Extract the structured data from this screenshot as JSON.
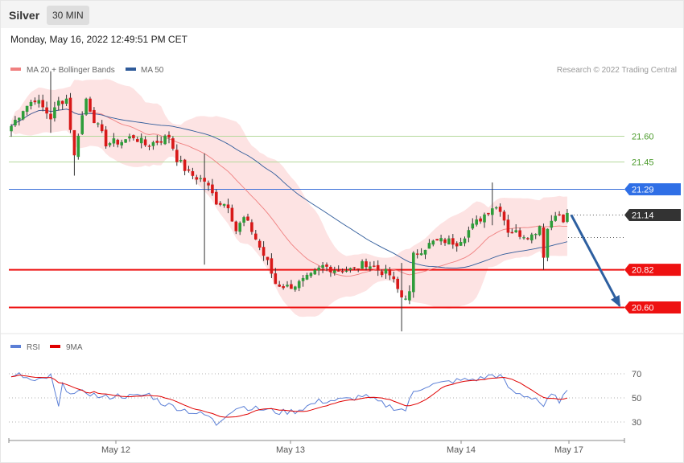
{
  "header": {
    "title": "Silver",
    "timeframe": "30 MIN"
  },
  "date_label": "Monday, May 16, 2022 12:49:51 PM CET",
  "legend": {
    "main": [
      {
        "label": "MA 20 + Bollinger Bands",
        "color": "#f08080"
      },
      {
        "label": "MA 50",
        "color": "#2f5b9a"
      }
    ],
    "rsi": [
      {
        "label": "RSI",
        "color": "#5b7fd6"
      },
      {
        "label": "9MA",
        "color": "#e00000"
      }
    ]
  },
  "credit": "Research © 2022 Trading Central",
  "colors": {
    "up": "#2e9d3a",
    "down": "#d81818",
    "band": "#fde3e3",
    "support": "#ee1111",
    "resistance_minor": "#b5d99c",
    "pivot": "#3a6fd8",
    "arrow": "#2d5fa0",
    "current": "#333333"
  },
  "chart_data": [
    {
      "type": "candlestick",
      "title": "",
      "ylim": [
        20.48,
        21.95
      ],
      "x_tick_labels": [
        "May 12",
        "May 13",
        "May 14",
        "May 17"
      ],
      "levels": [
        {
          "value": 21.6,
          "label": "21.60",
          "kind": "resistance_minor"
        },
        {
          "value": 21.45,
          "label": "21.45",
          "kind": "resistance_minor"
        },
        {
          "value": 21.29,
          "label": "21.29",
          "kind": "pivot"
        },
        {
          "value": 21.14,
          "label": "21.14",
          "kind": "current"
        },
        {
          "value": 20.82,
          "label": "20.82",
          "kind": "support"
        },
        {
          "value": 20.6,
          "label": "20.60",
          "kind": "support"
        }
      ],
      "forecast_arrow": {
        "from": 21.14,
        "to": 20.6
      },
      "anchors": [
        {
          "i": 0,
          "c": 21.66
        },
        {
          "i": 3,
          "c": 21.76
        },
        {
          "i": 6,
          "c": 21.82
        },
        {
          "i": 10,
          "c": 21.71
        },
        {
          "i": 12,
          "c": 21.8
        },
        {
          "i": 14,
          "c": 21.82
        },
        {
          "i": 16,
          "c": 21.48
        },
        {
          "i": 17,
          "c": 21.62
        },
        {
          "i": 19,
          "c": 21.82
        },
        {
          "i": 21,
          "c": 21.7
        },
        {
          "i": 24,
          "c": 21.56
        },
        {
          "i": 28,
          "c": 21.57
        },
        {
          "i": 31,
          "c": 21.6
        },
        {
          "i": 34,
          "c": 21.55
        },
        {
          "i": 37,
          "c": 21.57
        },
        {
          "i": 40,
          "c": 21.6
        },
        {
          "i": 42,
          "c": 21.47
        },
        {
          "i": 45,
          "c": 21.38
        },
        {
          "i": 49,
          "c": 21.34
        },
        {
          "i": 52,
          "c": 21.22
        },
        {
          "i": 55,
          "c": 21.2
        },
        {
          "i": 57,
          "c": 21.05
        },
        {
          "i": 59,
          "c": 21.12
        },
        {
          "i": 61,
          "c": 21.05
        },
        {
          "i": 63,
          "c": 20.95
        },
        {
          "i": 65,
          "c": 20.86
        },
        {
          "i": 67,
          "c": 20.74
        },
        {
          "i": 70,
          "c": 20.72
        },
        {
          "i": 73,
          "c": 20.74
        },
        {
          "i": 76,
          "c": 20.78
        },
        {
          "i": 79,
          "c": 20.84
        },
        {
          "i": 83,
          "c": 20.82
        },
        {
          "i": 87,
          "c": 20.82
        },
        {
          "i": 90,
          "c": 20.86
        },
        {
          "i": 93,
          "c": 20.82
        },
        {
          "i": 96,
          "c": 20.79
        },
        {
          "i": 99,
          "c": 20.66
        },
        {
          "i": 101,
          "c": 20.68
        },
        {
          "i": 102,
          "c": 20.9
        },
        {
          "i": 104,
          "c": 20.94
        },
        {
          "i": 107,
          "c": 20.98
        },
        {
          "i": 110,
          "c": 20.99
        },
        {
          "i": 113,
          "c": 20.98
        },
        {
          "i": 116,
          "c": 21.05
        },
        {
          "i": 119,
          "c": 21.12
        },
        {
          "i": 122,
          "c": 21.19
        },
        {
          "i": 124,
          "c": 21.18
        },
        {
          "i": 126,
          "c": 21.05
        },
        {
          "i": 129,
          "c": 21.03
        },
        {
          "i": 132,
          "c": 21.02
        },
        {
          "i": 134,
          "c": 21.08
        },
        {
          "i": 135,
          "c": 20.91
        },
        {
          "i": 136,
          "c": 21.06
        },
        {
          "i": 138,
          "c": 21.16
        },
        {
          "i": 140,
          "c": 21.1
        },
        {
          "i": 141,
          "c": 21.14
        }
      ],
      "highlights": [
        {
          "i": 10,
          "h": 21.98,
          "l": 21.62
        },
        {
          "i": 16,
          "h": 21.55,
          "l": 21.37
        },
        {
          "i": 49,
          "h": 21.5,
          "l": 20.85
        },
        {
          "i": 99,
          "h": 20.86,
          "l": 20.46
        },
        {
          "i": 122,
          "h": 21.33,
          "l": 21.08
        },
        {
          "i": 135,
          "h": 21.09,
          "l": 20.82
        }
      ],
      "rsi": {
        "ylim": [
          20,
          80
        ],
        "levels": [
          70,
          50,
          30
        ],
        "anchors": [
          {
            "i": 0,
            "v": 66
          },
          {
            "i": 2,
            "v": 69
          },
          {
            "i": 6,
            "v": 63
          },
          {
            "i": 10,
            "v": 68
          },
          {
            "i": 12,
            "v": 42
          },
          {
            "i": 13,
            "v": 60
          },
          {
            "i": 16,
            "v": 53
          },
          {
            "i": 19,
            "v": 55
          },
          {
            "i": 23,
            "v": 50
          },
          {
            "i": 27,
            "v": 52
          },
          {
            "i": 31,
            "v": 51
          },
          {
            "i": 35,
            "v": 53
          },
          {
            "i": 38,
            "v": 46
          },
          {
            "i": 42,
            "v": 42
          },
          {
            "i": 46,
            "v": 38
          },
          {
            "i": 50,
            "v": 35
          },
          {
            "i": 52,
            "v": 28
          },
          {
            "i": 55,
            "v": 38
          },
          {
            "i": 58,
            "v": 43
          },
          {
            "i": 62,
            "v": 41
          },
          {
            "i": 65,
            "v": 40
          },
          {
            "i": 68,
            "v": 38
          },
          {
            "i": 72,
            "v": 39
          },
          {
            "i": 75,
            "v": 43
          },
          {
            "i": 78,
            "v": 47
          },
          {
            "i": 82,
            "v": 48
          },
          {
            "i": 86,
            "v": 49
          },
          {
            "i": 89,
            "v": 52
          },
          {
            "i": 92,
            "v": 48
          },
          {
            "i": 95,
            "v": 44
          },
          {
            "i": 98,
            "v": 41
          },
          {
            "i": 100,
            "v": 40
          },
          {
            "i": 102,
            "v": 55
          },
          {
            "i": 105,
            "v": 60
          },
          {
            "i": 109,
            "v": 62
          },
          {
            "i": 112,
            "v": 64
          },
          {
            "i": 116,
            "v": 65
          },
          {
            "i": 119,
            "v": 66
          },
          {
            "i": 122,
            "v": 69
          },
          {
            "i": 124,
            "v": 68
          },
          {
            "i": 127,
            "v": 55
          },
          {
            "i": 130,
            "v": 52
          },
          {
            "i": 133,
            "v": 50
          },
          {
            "i": 135,
            "v": 43
          },
          {
            "i": 137,
            "v": 52
          },
          {
            "i": 139,
            "v": 48
          },
          {
            "i": 141,
            "v": 54
          }
        ]
      }
    }
  ]
}
